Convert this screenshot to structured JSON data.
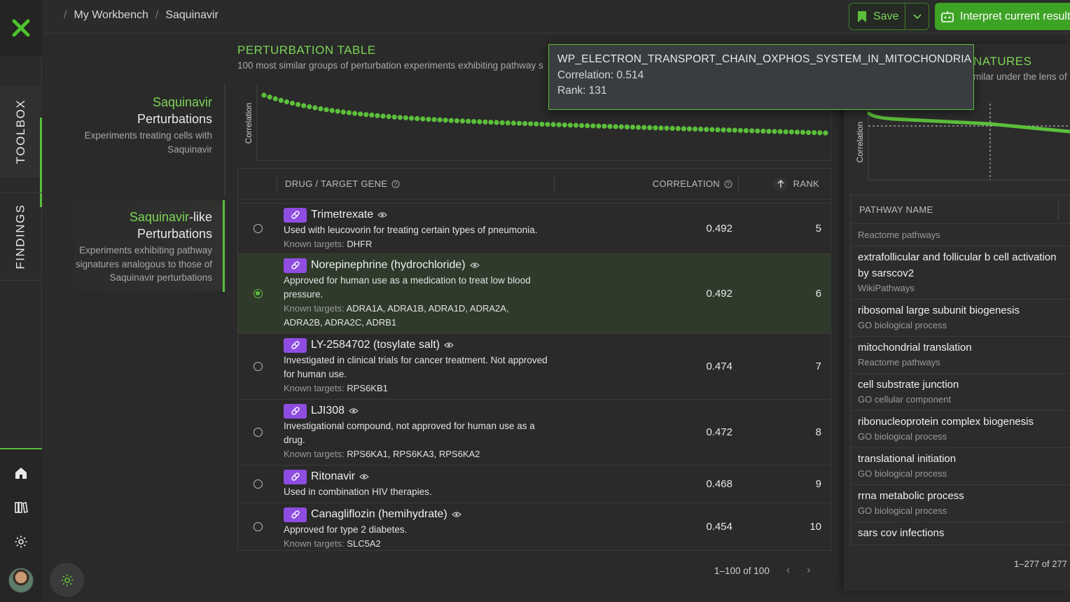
{
  "breadcrumb": {
    "sep": "/",
    "items": [
      "My Workbench",
      "Saquinavir"
    ]
  },
  "toolbar": {
    "save_label": "Save",
    "interpret_label": "Interpret current result"
  },
  "rail": {
    "tabs": [
      "TOOLBOX",
      "FINDINGS"
    ],
    "icons": [
      "home-icon",
      "library-icon",
      "settings-icon"
    ]
  },
  "nav": {
    "item1": {
      "title": "Saquinavir",
      "subtitle": "Perturbations",
      "desc": "Experiments treating cells with Saquinavir"
    },
    "item2": {
      "title_accent": "Saquinavir",
      "title_rest": "-like",
      "subtitle": "Perturbations",
      "desc": "Experiments exhibiting pathway signatures analogous to those of Saquinavir perturbations"
    }
  },
  "perturbation_table": {
    "title": "PERTURBATION TABLE",
    "subtitle": "100 most similar groups of perturbation experiments exhibiting pathway s",
    "chart_ylabel": "Correlation",
    "headers": {
      "gene": "DRUG / TARGET GENE",
      "correlation": "CORRELATION",
      "rank": "RANK"
    },
    "known_targets_label": "Known targets:",
    "rows": [
      {
        "name": "Trimetrexate",
        "desc": "Used with leucovorin for treating certain types of pneumonia.",
        "targets": "DHFR",
        "correlation": "0.492",
        "rank": "5",
        "selected": false
      },
      {
        "name": "Norepinephrine (hydrochloride)",
        "desc": "Approved for human use as a medication to treat low blood pressure.",
        "targets": "ADRA1A, ADRA1B, ADRA1D, ADRA2A, ADRA2B, ADRA2C, ADRB1",
        "correlation": "0.492",
        "rank": "6",
        "selected": true
      },
      {
        "name": "LY-2584702 (tosylate salt)",
        "desc": "Investigated in clinical trials for cancer treatment. Not approved for human use.",
        "targets": "RPS6KB1",
        "correlation": "0.474",
        "rank": "7",
        "selected": false
      },
      {
        "name": "LJI308",
        "desc": "Investigational compound, not approved for human use as a drug.",
        "targets": "RPS6KA1, RPS6KA3, RPS6KA2",
        "correlation": "0.472",
        "rank": "8",
        "selected": false
      },
      {
        "name": "Ritonavir",
        "desc": "Used in combination HIV therapies.",
        "targets": "",
        "correlation": "0.468",
        "rank": "9",
        "selected": false
      },
      {
        "name": "Canagliflozin (hemihydrate)",
        "desc": "Approved for type 2 diabetes.",
        "targets": "SLC5A2",
        "correlation": "0.454",
        "rank": "10",
        "selected": false
      }
    ],
    "pagination": "1–100 of 100"
  },
  "signatures_panel": {
    "title": "NATURES",
    "subtitle": "milar under the lens of p",
    "chart_ylabel": "Correlation",
    "header": "PATHWAY NAME",
    "first_group": "Reactome pathways",
    "rows": [
      {
        "name": "extrafollicular and follicular b cell activation by sarscov2",
        "category": "WikiPathways"
      },
      {
        "name": "ribosomal large subunit biogenesis",
        "category": "GO biological process"
      },
      {
        "name": "mitochondrial translation",
        "category": "Reactome pathways"
      },
      {
        "name": "cell substrate junction",
        "category": "GO cellular component"
      },
      {
        "name": "ribonucleoprotein complex biogenesis",
        "category": "GO biological process"
      },
      {
        "name": "translational initiation",
        "category": "GO biological process"
      },
      {
        "name": "rrna metabolic process",
        "category": "GO biological process"
      },
      {
        "name": "sars cov infections",
        "category": ""
      }
    ],
    "pagination": "1–277 of 277"
  },
  "tooltip": {
    "name": "WP_ELECTRON_TRANSPORT_CHAIN_OXPHOS_SYSTEM_IN_MITOCHONDRIA",
    "correlation": "Correlation: 0.514",
    "rank": "Rank: 131"
  },
  "colors": {
    "accent": "#5bbf3a",
    "accent_text": "#7cd457",
    "pill": "#8e4de0",
    "button": "#3da324"
  }
}
